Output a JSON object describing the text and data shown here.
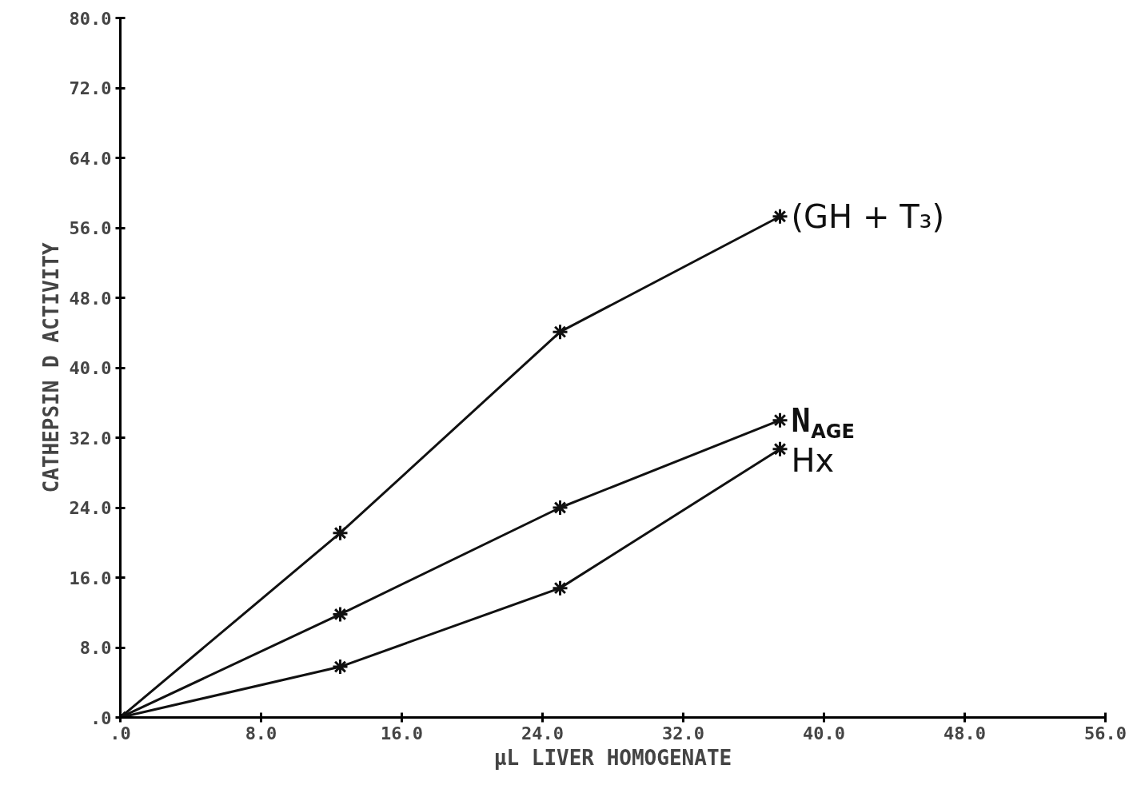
{
  "chart_data": {
    "type": "line",
    "xlabel": "µL LIVER HOMOGENATE",
    "ylabel": "CATHEPSIN D ACTIVITY",
    "x": [
      0,
      12.5,
      25,
      37.5
    ],
    "series": [
      {
        "name": "(GH + T₃)",
        "color": "#111111",
        "values": [
          0,
          21.1,
          44.1,
          57.3
        ]
      },
      {
        "name": "N$_{AGE}$",
        "color": "#111111",
        "values": [
          0,
          11.8,
          24.0,
          34.0
        ]
      },
      {
        "name": "Hx",
        "color": "#111111",
        "values": [
          0,
          5.8,
          14.8,
          30.7
        ]
      }
    ],
    "xlim": [
      0,
      56
    ],
    "ylim": [
      0,
      80
    ],
    "xticks": [
      {
        "value": 0,
        "label": ".0"
      },
      {
        "value": 8,
        "label": "8.0"
      },
      {
        "value": 16,
        "label": "16.0"
      },
      {
        "value": 24,
        "label": "24.0"
      },
      {
        "value": 32,
        "label": "32.0"
      },
      {
        "value": 40,
        "label": "40.0"
      },
      {
        "value": 48,
        "label": "48.0"
      },
      {
        "value": 56,
        "label": "56.0"
      }
    ],
    "yticks": [
      {
        "value": 0,
        "label": ".0"
      },
      {
        "value": 8,
        "label": "8.0"
      },
      {
        "value": 16,
        "label": "16.0"
      },
      {
        "value": 24,
        "label": "24.0"
      },
      {
        "value": 32,
        "label": "32.0"
      },
      {
        "value": 40,
        "label": "40.0"
      },
      {
        "value": 48,
        "label": "48.0"
      },
      {
        "value": 56,
        "label": "56.0"
      },
      {
        "value": 64,
        "label": "64.0"
      },
      {
        "value": 72,
        "label": "72.0"
      },
      {
        "value": 80,
        "label": "80.0"
      }
    ],
    "grid": false,
    "marker": "cross",
    "line_style": "solid"
  }
}
